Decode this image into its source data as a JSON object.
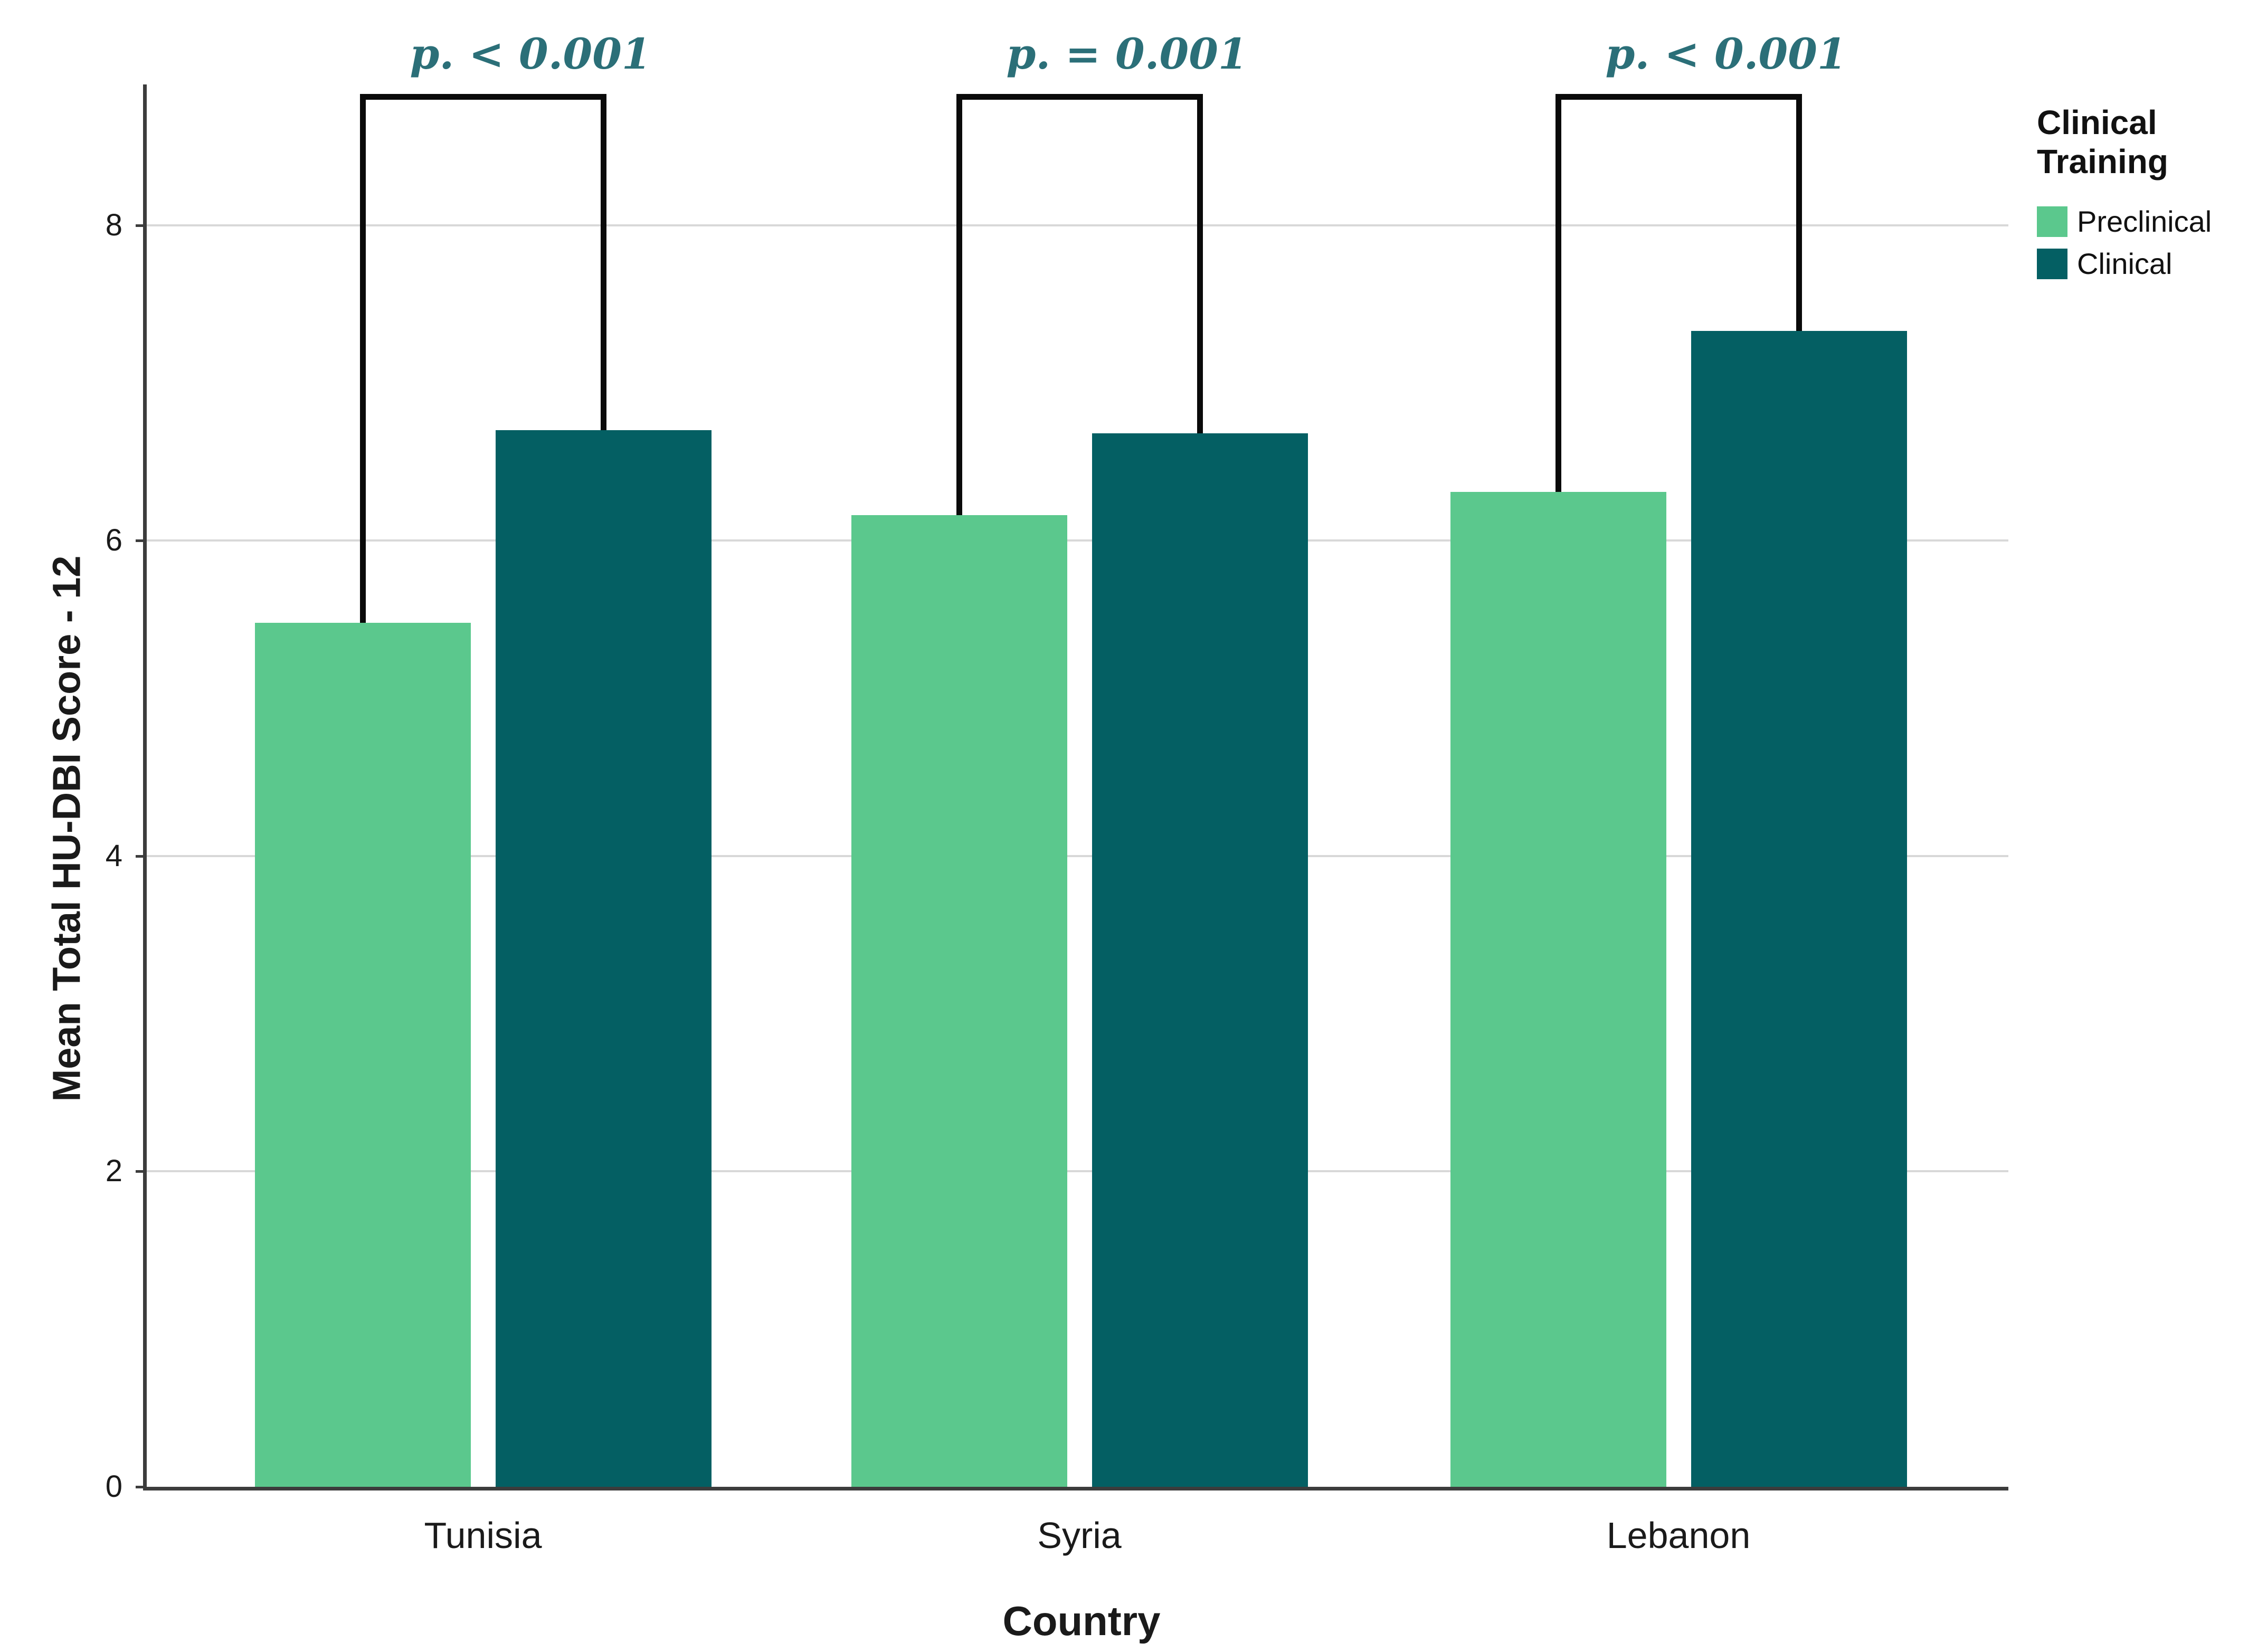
{
  "chart_data": {
    "type": "bar",
    "title": "",
    "categories": [
      "Tunisia",
      "Syria",
      "Lebanon"
    ],
    "series": [
      {
        "name": "Preclinical",
        "color": "#5bc88d",
        "values": [
          5.48,
          6.16,
          6.31
        ]
      },
      {
        "name": "Clinical",
        "color": "#045f63",
        "values": [
          6.7,
          6.68,
          7.33
        ]
      }
    ],
    "xlabel": "Country",
    "ylabel": "Mean Total HU-DBI Score - 12",
    "yticks": [
      0,
      2,
      4,
      6,
      8
    ],
    "ylim": [
      0,
      8.9
    ],
    "grid": "horizontal",
    "legend": {
      "title": "Clinical Training",
      "position": "top-right",
      "entries": [
        "Preclinical",
        "Clinical"
      ]
    },
    "annotations": [
      {
        "category": "Tunisia",
        "between": [
          "Preclinical",
          "Clinical"
        ],
        "label": "p. < 0.001"
      },
      {
        "category": "Syria",
        "between": [
          "Preclinical",
          "Clinical"
        ],
        "label": "p. = 0.001"
      },
      {
        "category": "Lebanon",
        "between": [
          "Preclinical",
          "Clinical"
        ],
        "label": "p. < 0.001"
      }
    ],
    "colors": {
      "annotation_text": "#2b6f78",
      "gridline": "#d8d8d8",
      "axis": "#3c3c3c",
      "bracket": "#0a0a0a",
      "text": "#1a1a1a"
    }
  }
}
